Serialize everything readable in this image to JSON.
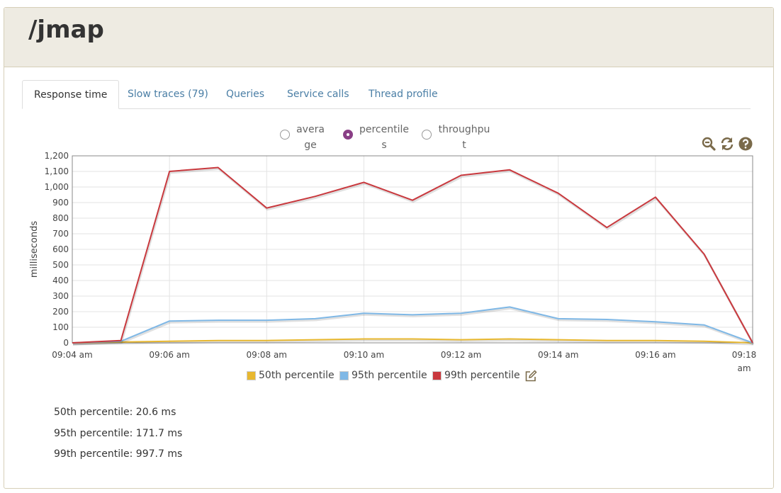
{
  "page_title": "/jmap",
  "tabs": [
    {
      "label": "Response time",
      "active": true
    },
    {
      "label": "Slow traces (79)",
      "active": false
    },
    {
      "label": "Queries",
      "active": false
    },
    {
      "label": "Service calls",
      "active": false
    },
    {
      "label": "Thread profile",
      "active": false
    }
  ],
  "view_options": [
    {
      "label": "average",
      "checked": false
    },
    {
      "label": "percentiles",
      "checked": true
    },
    {
      "label": "throughput",
      "checked": false
    }
  ],
  "tools": {
    "zoom_out": "zoom-out-icon",
    "refresh": "refresh-icon",
    "help": "help-icon",
    "edit": "edit-icon"
  },
  "chart_data": {
    "type": "line",
    "ylabel": "milliseconds",
    "ylim": [
      0,
      1200
    ],
    "y_ticks": [
      "0",
      "100",
      "200",
      "300",
      "400",
      "500",
      "600",
      "700",
      "800",
      "900",
      "1,000",
      "1,100",
      "1,200"
    ],
    "x_ticks": [
      "09:04 am",
      "09:06 am",
      "09:08 am",
      "09:10 am",
      "09:12 am",
      "09:14 am",
      "09:16 am",
      "09:18 am"
    ],
    "x_tick_minutes": [
      0,
      2,
      4,
      6,
      8,
      10,
      12,
      14
    ],
    "x_minutes": [
      0,
      1,
      2,
      3,
      4,
      5,
      6,
      7,
      8,
      9,
      10,
      11,
      12,
      13,
      14
    ],
    "grid": true,
    "legend_position": "bottom",
    "series": [
      {
        "name": "50th percentile",
        "color": "#e8b830",
        "values": [
          0,
          5,
          10,
          15,
          15,
          20,
          25,
          25,
          20,
          25,
          20,
          15,
          15,
          10,
          0
        ]
      },
      {
        "name": "95th percentile",
        "color": "#7fb8e6",
        "values": [
          0,
          10,
          140,
          145,
          145,
          155,
          190,
          180,
          190,
          230,
          155,
          150,
          135,
          115,
          0
        ]
      },
      {
        "name": "99th percentile",
        "color": "#c9393e",
        "values": [
          0,
          15,
          1100,
          1125,
          865,
          940,
          1030,
          915,
          1075,
          1110,
          960,
          740,
          935,
          570,
          0
        ]
      }
    ]
  },
  "stats": [
    "50th percentile: 20.6 ms",
    "95th percentile: 171.7 ms",
    "99th percentile: 997.7 ms"
  ]
}
